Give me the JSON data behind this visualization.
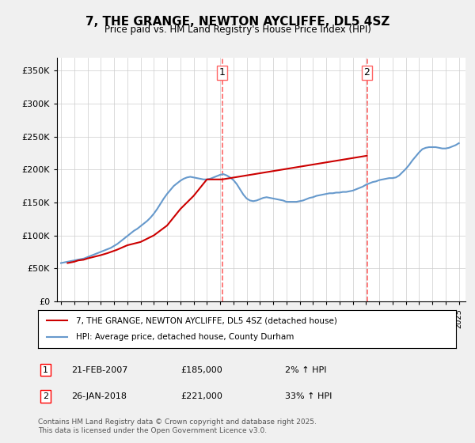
{
  "title": "7, THE GRANGE, NEWTON AYCLIFFE, DL5 4SZ",
  "subtitle": "Price paid vs. HM Land Registry's House Price Index (HPI)",
  "ylabel_ticks": [
    "£0",
    "£50K",
    "£100K",
    "£150K",
    "£200K",
    "£250K",
    "£300K",
    "£350K"
  ],
  "ytick_values": [
    0,
    50000,
    100000,
    150000,
    200000,
    250000,
    300000,
    350000
  ],
  "ylim": [
    0,
    370000
  ],
  "xlim_start": 1995,
  "xlim_end": 2025.5,
  "xticks": [
    1995,
    1996,
    1997,
    1998,
    1999,
    2000,
    2001,
    2002,
    2003,
    2004,
    2005,
    2006,
    2007,
    2008,
    2009,
    2010,
    2011,
    2012,
    2013,
    2014,
    2015,
    2016,
    2017,
    2018,
    2019,
    2020,
    2021,
    2022,
    2023,
    2024,
    2025
  ],
  "line1_color": "#cc0000",
  "line2_color": "#6699cc",
  "vline_color": "#ff6666",
  "annotation1": {
    "x": 2007.15,
    "label": "1",
    "date": "21-FEB-2007",
    "price": "£185,000",
    "hpi": "2% ↑ HPI"
  },
  "annotation2": {
    "x": 2018.07,
    "label": "2",
    "date": "26-JAN-2018",
    "price": "£221,000",
    "hpi": "33% ↑ HPI"
  },
  "legend_line1": "7, THE GRANGE, NEWTON AYCLIFFE, DL5 4SZ (detached house)",
  "legend_line2": "HPI: Average price, detached house, County Durham",
  "footer": "Contains HM Land Registry data © Crown copyright and database right 2025.\nThis data is licensed under the Open Government Licence v3.0.",
  "background_color": "#f0f0f0",
  "plot_bg_color": "#ffffff",
  "hpi_data_x": [
    1995.0,
    1995.25,
    1995.5,
    1995.75,
    1996.0,
    1996.25,
    1996.5,
    1996.75,
    1997.0,
    1997.25,
    1997.5,
    1997.75,
    1998.0,
    1998.25,
    1998.5,
    1998.75,
    1999.0,
    1999.25,
    1999.5,
    1999.75,
    2000.0,
    2000.25,
    2000.5,
    2000.75,
    2001.0,
    2001.25,
    2001.5,
    2001.75,
    2002.0,
    2002.25,
    2002.5,
    2002.75,
    2003.0,
    2003.25,
    2003.5,
    2003.75,
    2004.0,
    2004.25,
    2004.5,
    2004.75,
    2005.0,
    2005.25,
    2005.5,
    2005.75,
    2006.0,
    2006.25,
    2006.5,
    2006.75,
    2007.0,
    2007.25,
    2007.5,
    2007.75,
    2008.0,
    2008.25,
    2008.5,
    2008.75,
    2009.0,
    2009.25,
    2009.5,
    2009.75,
    2010.0,
    2010.25,
    2010.5,
    2010.75,
    2011.0,
    2011.25,
    2011.5,
    2011.75,
    2012.0,
    2012.25,
    2012.5,
    2012.75,
    2013.0,
    2013.25,
    2013.5,
    2013.75,
    2014.0,
    2014.25,
    2014.5,
    2014.75,
    2015.0,
    2015.25,
    2015.5,
    2015.75,
    2016.0,
    2016.25,
    2016.5,
    2016.75,
    2017.0,
    2017.25,
    2017.5,
    2017.75,
    2018.0,
    2018.25,
    2018.5,
    2018.75,
    2019.0,
    2019.25,
    2019.5,
    2019.75,
    2020.0,
    2020.25,
    2020.5,
    2020.75,
    2021.0,
    2021.25,
    2021.5,
    2021.75,
    2022.0,
    2022.25,
    2022.5,
    2022.75,
    2023.0,
    2023.25,
    2023.5,
    2023.75,
    2024.0,
    2024.25,
    2024.5,
    2024.75,
    2025.0
  ],
  "hpi_data_y": [
    58000,
    59000,
    60000,
    61000,
    62000,
    63000,
    64000,
    65000,
    67000,
    69000,
    71000,
    73000,
    75000,
    77000,
    79000,
    81000,
    84000,
    87000,
    91000,
    95000,
    99000,
    103000,
    107000,
    110000,
    114000,
    118000,
    122000,
    127000,
    133000,
    140000,
    148000,
    156000,
    163000,
    169000,
    175000,
    179000,
    183000,
    186000,
    188000,
    189000,
    188000,
    187000,
    186000,
    185000,
    185000,
    186000,
    188000,
    190000,
    192000,
    193000,
    191000,
    188000,
    184000,
    178000,
    170000,
    162000,
    156000,
    153000,
    152000,
    153000,
    155000,
    157000,
    158000,
    157000,
    156000,
    155000,
    154000,
    153000,
    151000,
    151000,
    151000,
    151000,
    152000,
    153000,
    155000,
    157000,
    158000,
    160000,
    161000,
    162000,
    163000,
    164000,
    164000,
    165000,
    165000,
    166000,
    166000,
    167000,
    168000,
    170000,
    172000,
    174000,
    177000,
    179000,
    181000,
    182000,
    184000,
    185000,
    186000,
    187000,
    187000,
    188000,
    191000,
    196000,
    201000,
    207000,
    214000,
    220000,
    226000,
    231000,
    233000,
    234000,
    234000,
    234000,
    233000,
    232000,
    232000,
    233000,
    235000,
    237000,
    240000
  ],
  "price_paid_x": [
    1995.5,
    1996.0,
    1996.3,
    1996.7,
    1997.0,
    1997.4,
    1998.0,
    1998.5,
    1999.2,
    2000.0,
    2001.0,
    2002.0,
    2003.0,
    2004.0,
    2005.0,
    2006.0,
    2007.15,
    2018.07
  ],
  "price_paid_y": [
    58000,
    60000,
    62000,
    63000,
    65000,
    67000,
    70000,
    73000,
    78000,
    85000,
    90000,
    100000,
    115000,
    140000,
    160000,
    185000,
    185000,
    221000
  ]
}
